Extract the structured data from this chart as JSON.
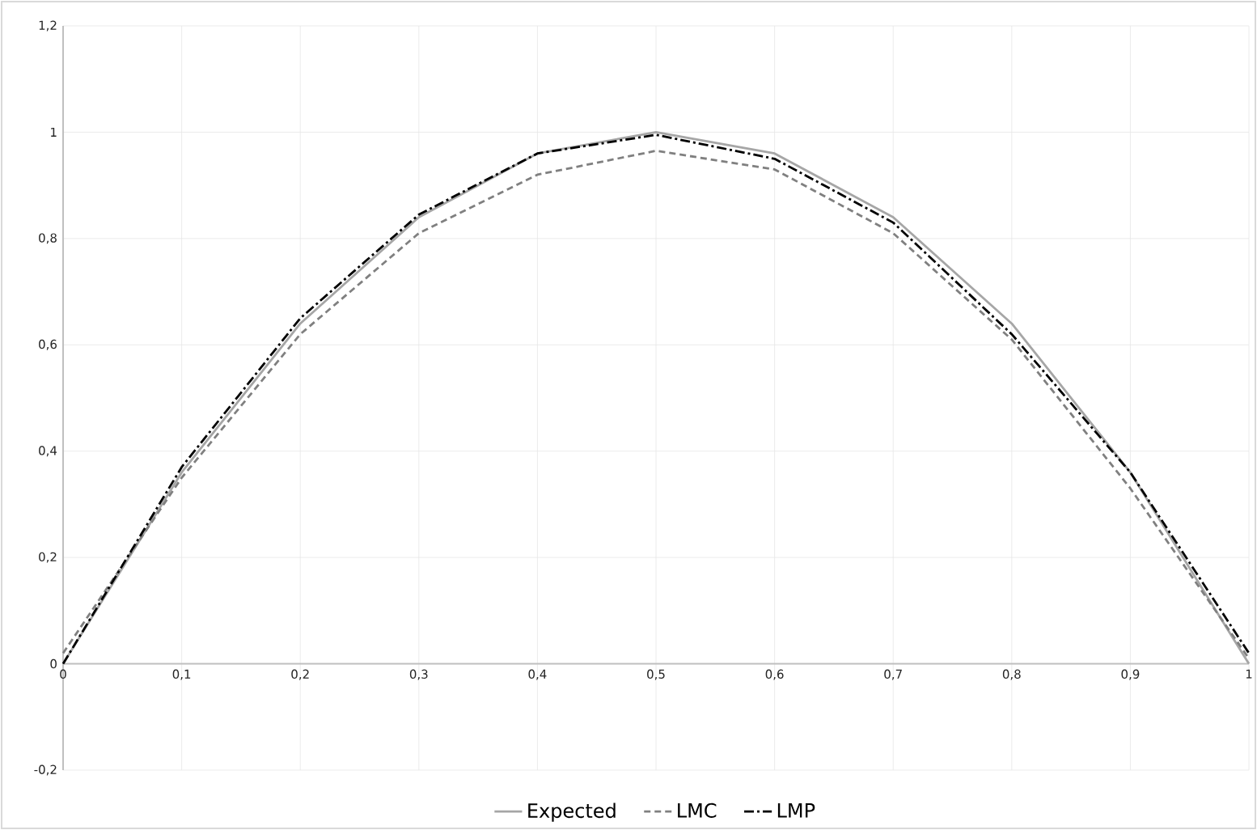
{
  "chart_data": {
    "type": "line",
    "x": [
      0,
      0.1,
      0.2,
      0.3,
      0.4,
      0.5,
      0.6,
      0.7,
      0.8,
      0.9,
      1
    ],
    "series": [
      {
        "name": "Expected",
        "color": "#a6a6a6",
        "line_style": "solid",
        "values": [
          0,
          0.36,
          0.64,
          0.84,
          0.96,
          1,
          0.96,
          0.84,
          0.64,
          0.36,
          0
        ]
      },
      {
        "name": "LMC",
        "color": "#808080",
        "line_style": "dashed",
        "values": [
          0.02,
          0.35,
          0.62,
          0.81,
          0.92,
          0.965,
          0.93,
          0.81,
          0.61,
          0.33,
          0.01
        ]
      },
      {
        "name": "LMP",
        "color": "#000000",
        "line_style": "dashdot",
        "values": [
          0,
          0.37,
          0.65,
          0.845,
          0.96,
          0.995,
          0.95,
          0.83,
          0.62,
          0.36,
          0.02
        ]
      }
    ],
    "xlim": [
      0,
      1
    ],
    "ylim": [
      -0.2,
      1.2
    ],
    "xticks": [
      0,
      {
        "value": 0.1,
        "label": "0,1"
      },
      {
        "value": 0.2,
        "label": "0,2"
      },
      {
        "value": 0.3,
        "label": "0,3"
      },
      {
        "value": 0.4,
        "label": "0,4"
      },
      {
        "value": 0.5,
        "label": "0,5"
      },
      {
        "value": 0.6,
        "label": "0,6"
      },
      {
        "value": 0.7,
        "label": "0,7"
      },
      {
        "value": 0.8,
        "label": "0,8"
      },
      {
        "value": 0.9,
        "label": "0,9"
      },
      1
    ],
    "yticks": [
      {
        "value": -0.2,
        "label": "-0,2"
      },
      0,
      {
        "value": 0.2,
        "label": "0,2"
      },
      {
        "value": 0.4,
        "label": "0,4"
      },
      {
        "value": 0.6,
        "label": "0,6"
      },
      {
        "value": 0.8,
        "label": "0,8"
      },
      1,
      {
        "value": 1.2,
        "label": "1,2"
      }
    ],
    "grid": true,
    "legend": "bottom",
    "marker": "none"
  }
}
